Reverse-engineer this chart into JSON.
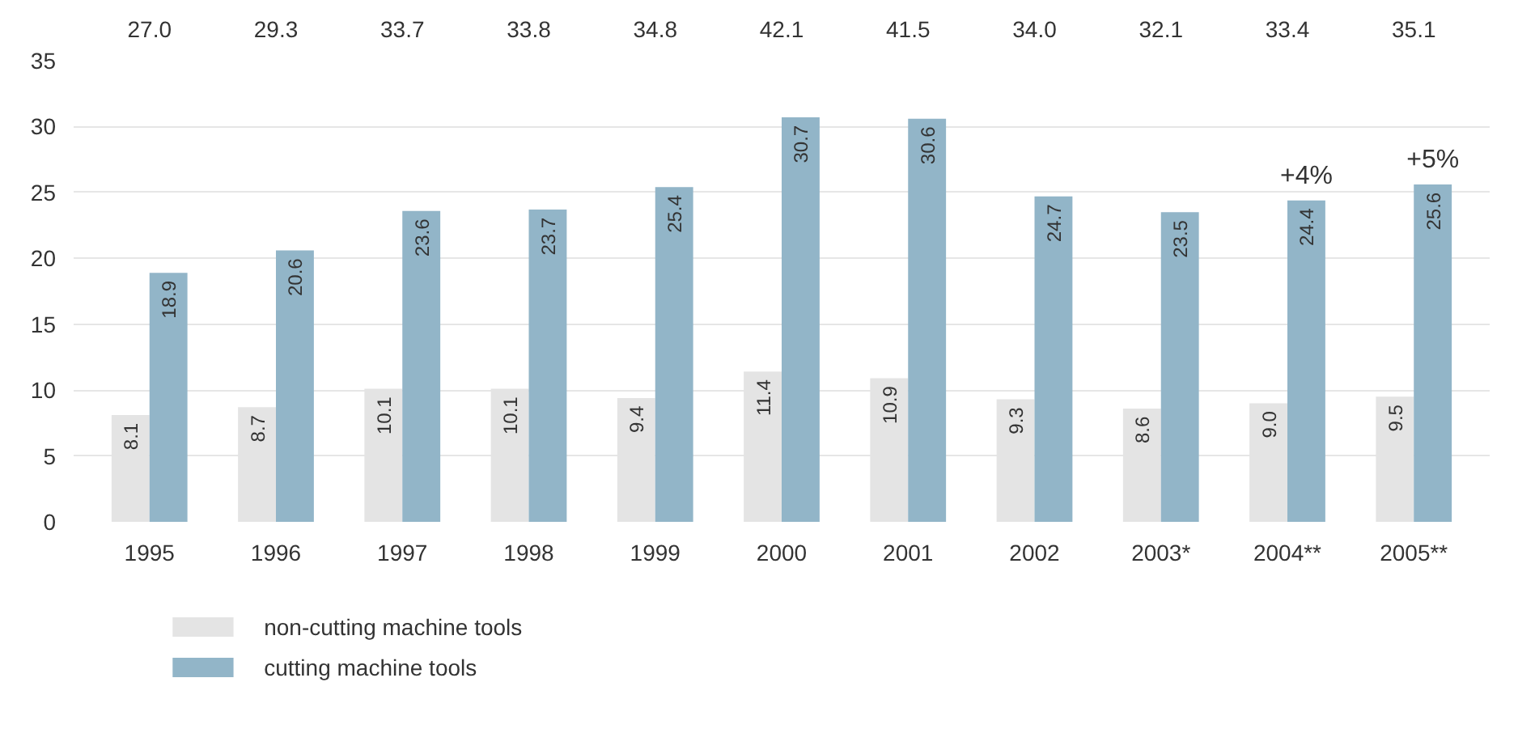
{
  "chart_data": {
    "type": "bar",
    "categories": [
      "1995",
      "1996",
      "1997",
      "1998",
      "1999",
      "2000",
      "2001",
      "2002",
      "2003*",
      "2004**",
      "2005**"
    ],
    "series": [
      {
        "name": "non-cutting machine tools",
        "color": "#e4e4e4",
        "values": [
          8.1,
          8.7,
          10.1,
          10.1,
          9.4,
          11.4,
          10.9,
          9.3,
          8.6,
          9.0,
          9.5
        ],
        "value_labels": [
          "8.1",
          "8.7",
          "10.1",
          "10.1",
          "9.4",
          "11.4",
          "10.9",
          "9.3",
          "8.6",
          "9.0",
          "9.5"
        ]
      },
      {
        "name": "cutting machine tools",
        "color": "#92b5c8",
        "values": [
          18.9,
          20.6,
          23.6,
          23.7,
          25.4,
          30.7,
          30.6,
          24.7,
          23.5,
          24.4,
          25.6
        ],
        "value_labels": [
          "18.9",
          "20.6",
          "23.6",
          "23.7",
          "25.4",
          "30.7",
          "30.6",
          "24.7",
          "23.5",
          "24.4",
          "25.6"
        ]
      }
    ],
    "annotations": [
      "27.0",
      "29.3",
      "33.7",
      "33.8",
      "34.8",
      "42.1",
      "41.5",
      "34.0",
      "32.1",
      "33.4",
      "35.1",
      {
        "text": "+4%",
        "x": "2004**",
        "y": 24.4
      },
      {
        "text": "+5%",
        "x": "2005**",
        "y": 25.6
      }
    ],
    "ylim": [
      0,
      35
    ],
    "yticks": [
      0,
      5,
      10,
      15,
      20,
      25,
      30,
      35
    ],
    "grid": "y",
    "legend": "bottom"
  }
}
